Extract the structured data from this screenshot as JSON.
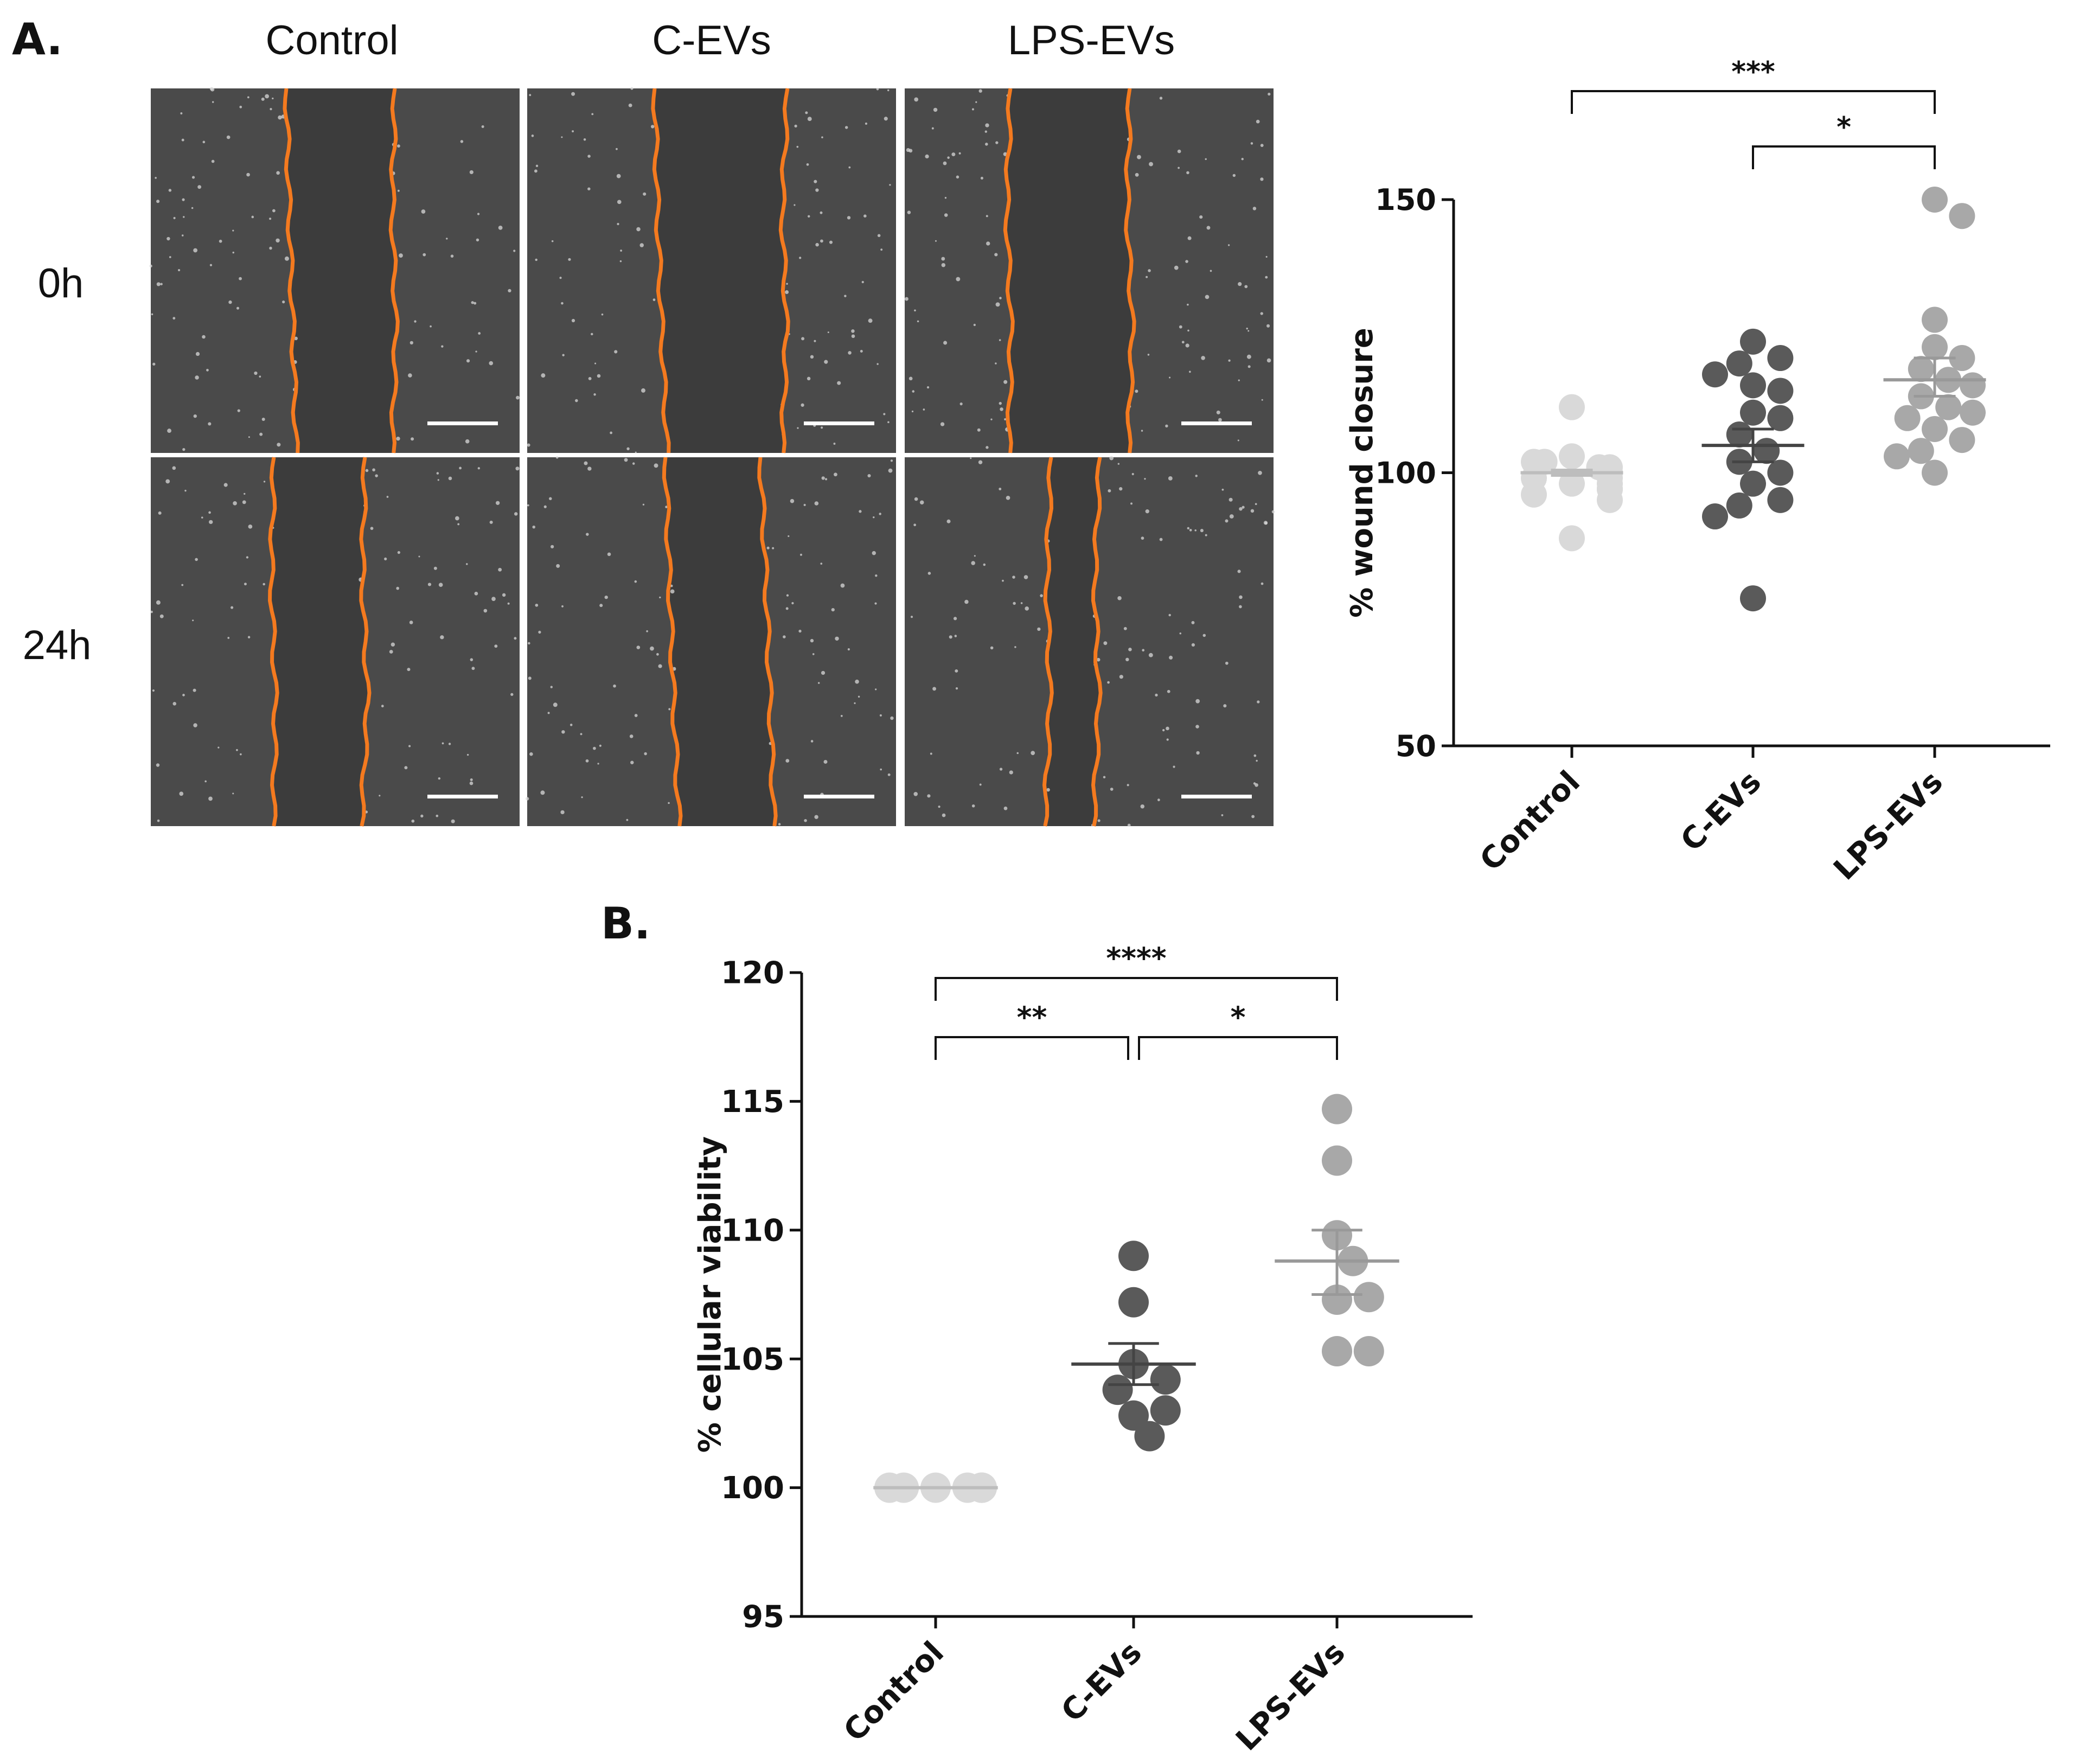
{
  "panelA": {
    "label": "A.",
    "columns": [
      "Control",
      "C-EVs",
      "LPS-EVs"
    ],
    "rows": [
      "0h",
      "24h"
    ]
  },
  "panelB": {
    "label": "B."
  },
  "colors": {
    "control": "#d9d9d9",
    "cevs": "#5a5a5a",
    "lpsevs": "#a8a8a8",
    "wound_edge": "#f47a1f",
    "micro_bg": "#3c3c3c",
    "axis": "#111111"
  },
  "chart_data": [
    {
      "type": "scatter",
      "panel": "A",
      "categories": [
        "Control",
        "C-EVs",
        "LPS-EVs"
      ],
      "ylabel": "% wound closure",
      "ylim": [
        50,
        150
      ],
      "yticks": [
        50,
        100,
        150
      ],
      "series": [
        {
          "category": "Control",
          "values": [
            112,
            103,
            101,
            102,
            100,
            98,
            99,
            97,
            101,
            100,
            99,
            96,
            98,
            95,
            100,
            102,
            97,
            88
          ],
          "mean": 100,
          "sem": [
            99.5,
            100.5
          ]
        },
        {
          "category": "C-EVs",
          "values": [
            124,
            121,
            120,
            118,
            116,
            115,
            111,
            110,
            107,
            104,
            102,
            100,
            98,
            95,
            94,
            92,
            77
          ],
          "mean": 105,
          "sem": [
            102,
            108
          ]
        },
        {
          "category": "LPS-EVs",
          "values": [
            150,
            147,
            128,
            123,
            121,
            119,
            117,
            116,
            114,
            112,
            111,
            110,
            108,
            106,
            104,
            103,
            100
          ],
          "mean": 117,
          "sem": [
            114,
            121
          ]
        }
      ],
      "significance": [
        {
          "from": "Control",
          "to": "LPS-EVs",
          "label": "***"
        },
        {
          "from": "C-EVs",
          "to": "LPS-EVs",
          "label": "*"
        }
      ]
    },
    {
      "type": "scatter",
      "panel": "B",
      "categories": [
        "Control",
        "C-EVs",
        "LPS-EVs"
      ],
      "ylabel": "% cellular viability",
      "ylim": [
        95,
        120
      ],
      "yticks": [
        95,
        100,
        105,
        110,
        115,
        120
      ],
      "series": [
        {
          "category": "Control",
          "values": [
            100,
            100,
            100,
            100,
            100,
            100,
            100,
            100
          ],
          "mean": 100,
          "sem": [
            100,
            100
          ]
        },
        {
          "category": "C-EVs",
          "values": [
            109,
            107.2,
            104.8,
            104.2,
            103.8,
            102.8,
            102,
            103
          ],
          "mean": 104.8,
          "sem": [
            104.0,
            105.6
          ]
        },
        {
          "category": "LPS-EVs",
          "values": [
            114.7,
            112.7,
            109.8,
            108.8,
            107.3,
            107.4,
            105.3,
            105.3
          ],
          "mean": 108.8,
          "sem": [
            107.5,
            110.0
          ]
        }
      ],
      "significance": [
        {
          "from": "Control",
          "to": "LPS-EVs",
          "label": "****"
        },
        {
          "from": "Control",
          "to": "C-EVs",
          "label": "**"
        },
        {
          "from": "C-EVs",
          "to": "LPS-EVs",
          "label": "*"
        }
      ]
    }
  ]
}
